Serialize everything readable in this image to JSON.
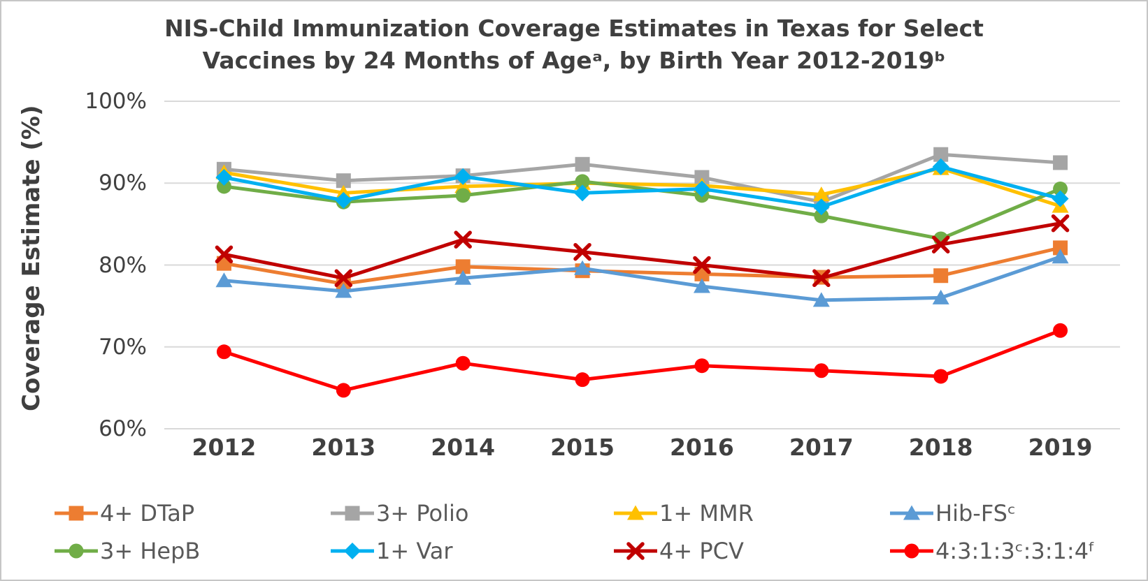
{
  "title_lines": [
    "NIS-Child Immunization Coverage Estimates in Texas for Select",
    "Vaccines by 24 Months of Ageᵃ, by Birth Year 2012-2019ᵇ"
  ],
  "chart_data": {
    "type": "line",
    "title": "NIS-Child Immunization Coverage Estimates in Texas for Select Vaccines by 24 Months of Ageᵃ, by Birth Year 2012-2019ᵇ",
    "xlabel": "",
    "ylabel": "Coverage Estimate (%)",
    "ylim": [
      60,
      100
    ],
    "grid": "horizontal",
    "legend_position": "bottom",
    "categories": [
      "2012",
      "2013",
      "2014",
      "2015",
      "2016",
      "2017",
      "2018",
      "2019"
    ],
    "yticks": [
      {
        "label": "100%",
        "value": 100
      },
      {
        "label": "90%",
        "value": 90
      },
      {
        "label": "80%",
        "value": 80
      },
      {
        "label": "70%",
        "value": 70
      },
      {
        "label": "60%",
        "value": 60
      }
    ],
    "series": [
      {
        "name": "4+ DTaP",
        "color": "#ED7D31",
        "marker": "square",
        "values": [
          80.2,
          77.7,
          79.8,
          79.3,
          78.9,
          78.5,
          78.7,
          82.1
        ]
      },
      {
        "name": "3+ Polio",
        "color": "#A5A5A5",
        "marker": "square",
        "values": [
          91.7,
          90.3,
          90.9,
          92.3,
          90.7,
          87.7,
          93.5,
          92.5
        ]
      },
      {
        "name": "1+ MMR",
        "color": "#FFC000",
        "marker": "triangle",
        "values": [
          91.3,
          88.8,
          89.6,
          90.0,
          89.7,
          88.6,
          91.8,
          87.2
        ]
      },
      {
        "name": "Hib-FSᶜ",
        "color": "#5B9BD5",
        "marker": "triangle",
        "values": [
          78.1,
          76.8,
          78.4,
          79.6,
          77.4,
          75.7,
          76.0,
          81.0
        ]
      },
      {
        "name": "3+ HepB",
        "color": "#70AD47",
        "marker": "circle",
        "values": [
          89.6,
          87.7,
          88.5,
          90.2,
          88.5,
          86.0,
          83.2,
          89.3
        ]
      },
      {
        "name": "1+ Var",
        "color": "#00B0F0",
        "marker": "diamond",
        "values": [
          90.7,
          87.9,
          90.8,
          88.8,
          89.3,
          87.1,
          92.0,
          88.1
        ]
      },
      {
        "name": "4+ PCV",
        "color": "#C00000",
        "marker": "xcross",
        "values": [
          81.3,
          78.4,
          83.1,
          81.6,
          80.0,
          78.4,
          82.5,
          85.1
        ]
      },
      {
        "name": "4:3:1:3ᶜ:3:1:4ᶠ",
        "color": "#FF0000",
        "marker": "circle",
        "values": [
          69.4,
          64.7,
          68.0,
          66.0,
          67.7,
          67.1,
          66.4,
          72.0
        ]
      }
    ],
    "colors": {
      "grid": "#D9D9D9",
      "title_text": "#3F3F3F",
      "axis_text": "#404040",
      "legend_text": "#595959"
    }
  }
}
